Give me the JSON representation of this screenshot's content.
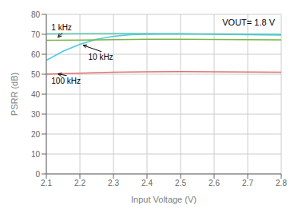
{
  "chart_data": {
    "type": "line",
    "xlabel": "Input Voltage (V)",
    "ylabel": "PSRR (dB)",
    "xlim": [
      2.1,
      2.8
    ],
    "ylim": [
      0,
      80
    ],
    "xticks": [
      2.1,
      2.2,
      2.3,
      2.4,
      2.5,
      2.6,
      2.7,
      2.8
    ],
    "yticks": [
      0,
      10,
      20,
      30,
      40,
      50,
      60,
      70,
      80
    ],
    "grid": true,
    "series": [
      {
        "color": "#4dc8e8",
        "x": [
          2.1,
          2.15,
          2.2,
          2.25,
          2.3,
          2.35,
          2.4,
          2.5,
          2.6,
          2.7,
          2.8
        ],
        "values": [
          57.0,
          61.5,
          65.0,
          67.5,
          69.0,
          69.8,
          70.0,
          70.2,
          70.0,
          69.8,
          69.6
        ]
      },
      {
        "color": "#5ac8b0",
        "x": [
          2.1,
          2.2,
          2.3,
          2.4,
          2.5,
          2.6,
          2.7,
          2.8
        ],
        "values": [
          70.2,
          70.3,
          70.4,
          70.4,
          70.3,
          70.2,
          70.1,
          70.0
        ]
      },
      {
        "color": "#7ab648",
        "x": [
          2.1,
          2.2,
          2.3,
          2.4,
          2.5,
          2.6,
          2.7,
          2.8
        ],
        "values": [
          67.0,
          67.1,
          67.3,
          67.5,
          67.5,
          67.4,
          67.3,
          67.2
        ]
      },
      {
        "color": "#e07070",
        "x": [
          2.1,
          2.2,
          2.3,
          2.4,
          2.5,
          2.6,
          2.7,
          2.8
        ],
        "values": [
          50.0,
          50.5,
          51.0,
          51.2,
          51.3,
          51.2,
          51.1,
          51.0
        ]
      }
    ],
    "annotations": [
      {
        "text": "1 kHz",
        "text_x": 2.115,
        "text_y": 73.5,
        "x": 2.135,
        "y": 68.5
      },
      {
        "text": "10 kHz",
        "text_x": 2.225,
        "text_y": 58.5,
        "x": 2.21,
        "y": 64.5
      },
      {
        "text": "100 kHz",
        "text_x": 2.115,
        "text_y": 46.5,
        "x": 2.135,
        "y": 50.1
      },
      {
        "text": "VOUT= 1.8 V"
      }
    ]
  }
}
